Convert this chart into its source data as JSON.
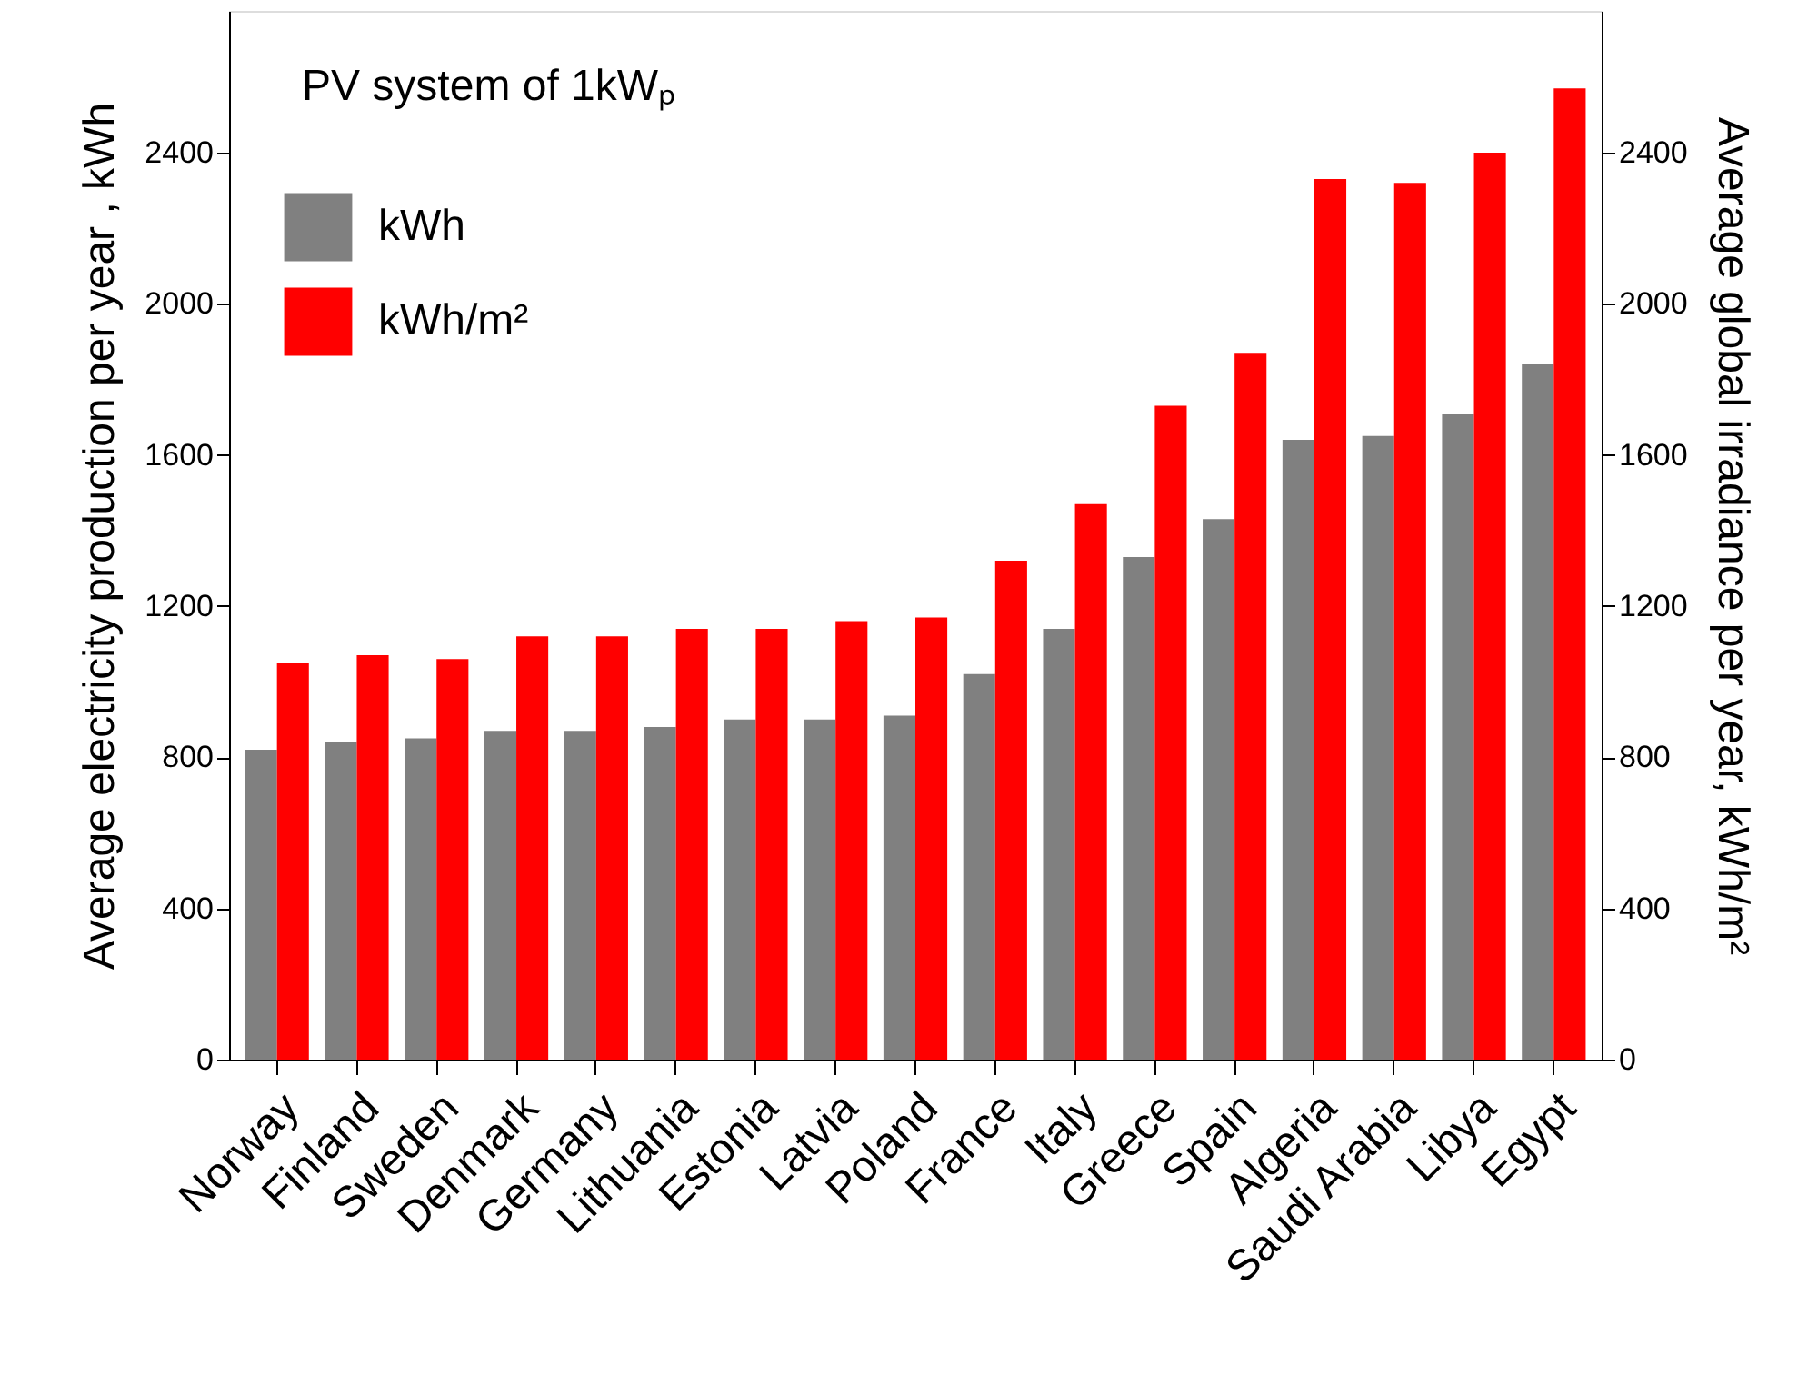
{
  "chart_data": {
    "type": "bar",
    "title": "PV system of 1kWₚ",
    "ylabel": "Average electricity production per year , kWh",
    "y2label": "Average global irradiance per year, kWh/m²",
    "categories": [
      "Norway",
      "Finland",
      "Sweden",
      "Denmark",
      "Germany",
      "Lithuania",
      "Estonia",
      "Latvia",
      "Poland",
      "France",
      "Italy",
      "Greece",
      "Spain",
      "Algeria",
      "Saudi Arabia",
      "Libya",
      "Egypt"
    ],
    "series": [
      {
        "name": "kWh",
        "color": "#808080",
        "values": [
          820,
          840,
          850,
          870,
          870,
          880,
          900,
          900,
          910,
          1020,
          1140,
          1330,
          1430,
          1640,
          1650,
          1710,
          1840
        ]
      },
      {
        "name": "kWh/m²",
        "color": "#ff0000",
        "axis": "y2",
        "values": [
          1050,
          1070,
          1060,
          1120,
          1120,
          1140,
          1140,
          1160,
          1170,
          1320,
          1470,
          1730,
          1870,
          2330,
          2320,
          2400,
          2570
        ]
      }
    ],
    "ylim": [
      0,
      2775
    ],
    "yticks": [
      0,
      400,
      800,
      1200,
      1600,
      2000,
      2400
    ],
    "y2lim": [
      0,
      2775
    ],
    "y2ticks": [
      0,
      400,
      800,
      1200,
      1600,
      2000,
      2400
    ],
    "legend": "top left",
    "grid": false
  }
}
